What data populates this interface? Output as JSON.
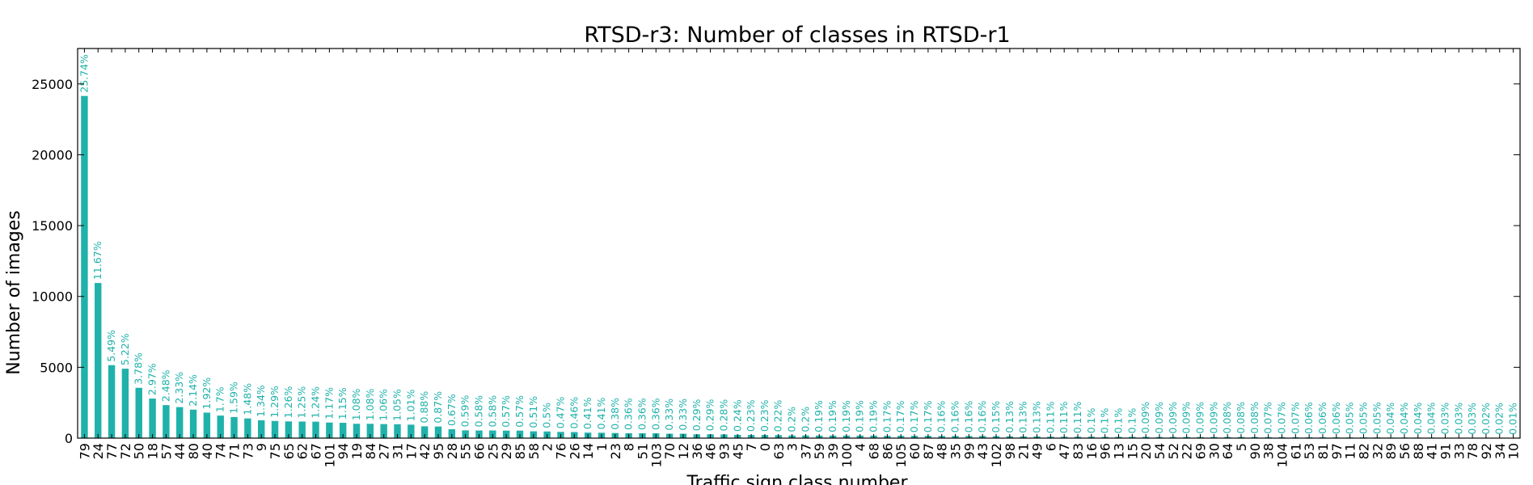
{
  "chart_data": {
    "type": "bar",
    "title": "RTSD-r3: Number of classes in RTSD-r1",
    "xlabel": "Traffic sign class number",
    "ylabel": "Number of images",
    "ylim": [
      0,
      27500
    ],
    "yticks": [
      0,
      5000,
      10000,
      15000,
      20000,
      25000
    ],
    "grid": false,
    "bar_color": "#20b2aa",
    "label_color": "#20b2aa",
    "categories": [
      "79",
      "24",
      "77",
      "72",
      "50",
      "18",
      "57",
      "44",
      "80",
      "40",
      "74",
      "71",
      "73",
      "9",
      "75",
      "65",
      "62",
      "67",
      "101",
      "94",
      "19",
      "84",
      "27",
      "31",
      "17",
      "42",
      "95",
      "28",
      "55",
      "66",
      "25",
      "29",
      "85",
      "58",
      "2",
      "76",
      "26",
      "14",
      "1",
      "23",
      "8",
      "51",
      "103",
      "70",
      "12",
      "36",
      "46",
      "93",
      "45",
      "7",
      "0",
      "63",
      "3",
      "37",
      "59",
      "39",
      "100",
      "4",
      "68",
      "86",
      "105",
      "60",
      "87",
      "48",
      "35",
      "99",
      "43",
      "102",
      "98",
      "21",
      "49",
      "6",
      "47",
      "83",
      "16",
      "96",
      "13",
      "15",
      "20",
      "54",
      "52",
      "22",
      "69",
      "30",
      "64",
      "5",
      "90",
      "38",
      "104",
      "61",
      "53",
      "81",
      "97",
      "11",
      "82",
      "32",
      "89",
      "56",
      "88",
      "41",
      "91",
      "33",
      "78",
      "92",
      "34",
      "10"
    ],
    "values": [
      24150,
      10950,
      5150,
      4900,
      3550,
      2790,
      2330,
      2190,
      2010,
      1800,
      1590,
      1490,
      1390,
      1260,
      1210,
      1180,
      1170,
      1160,
      1100,
      1080,
      1010,
      1010,
      990,
      980,
      950,
      830,
      820,
      630,
      550,
      540,
      540,
      530,
      530,
      480,
      470,
      440,
      430,
      390,
      380,
      360,
      340,
      340,
      340,
      310,
      310,
      270,
      270,
      260,
      230,
      220,
      220,
      210,
      190,
      190,
      180,
      180,
      180,
      180,
      180,
      160,
      160,
      160,
      160,
      150,
      150,
      150,
      150,
      140,
      130,
      120,
      120,
      100,
      100,
      100,
      100,
      90,
      90,
      90,
      90,
      80,
      80,
      80,
      80,
      80,
      80,
      80,
      80,
      70,
      70,
      60,
      60,
      60,
      50,
      50,
      50,
      50,
      40,
      40,
      40,
      40,
      30,
      30,
      20,
      20,
      20,
      10
    ],
    "percent_labels": [
      "25.74%",
      "11.67%",
      "5.49%",
      "5.22%",
      "3.78%",
      "2.97%",
      "2.48%",
      "2.33%",
      "2.14%",
      "1.92%",
      "1.7%",
      "1.59%",
      "1.48%",
      "1.34%",
      "1.29%",
      "1.26%",
      "1.25%",
      "1.24%",
      "1.17%",
      "1.15%",
      "1.08%",
      "1.08%",
      "1.06%",
      "1.05%",
      "1.01%",
      "0.88%",
      "0.87%",
      "0.67%",
      "0.59%",
      "0.58%",
      "0.58%",
      "0.57%",
      "0.57%",
      "0.51%",
      "0.5%",
      "0.47%",
      "0.46%",
      "0.41%",
      "0.41%",
      "0.38%",
      "0.36%",
      "0.36%",
      "0.36%",
      "0.33%",
      "0.33%",
      "0.29%",
      "0.29%",
      "0.28%",
      "0.24%",
      "0.23%",
      "0.23%",
      "0.22%",
      "0.2%",
      "0.2%",
      "0.19%",
      "0.19%",
      "0.19%",
      "0.19%",
      "0.19%",
      "0.17%",
      "0.17%",
      "0.17%",
      "0.17%",
      "0.16%",
      "0.16%",
      "0.16%",
      "0.16%",
      "0.15%",
      "0.13%",
      "0.13%",
      "0.13%",
      "0.11%",
      "0.11%",
      "0.11%",
      "0.1%",
      "0.1%",
      "0.1%",
      "0.1%",
      "0.09%",
      "0.09%",
      "0.09%",
      "0.09%",
      "0.09%",
      "0.09%",
      "0.08%",
      "0.08%",
      "0.08%",
      "0.07%",
      "0.07%",
      "0.07%",
      "0.06%",
      "0.06%",
      "0.06%",
      "0.05%",
      "0.05%",
      "0.05%",
      "0.04%",
      "0.04%",
      "0.04%",
      "0.04%",
      "0.03%",
      "0.03%",
      "0.03%",
      "0.02%",
      "0.02%",
      "0.01%"
    ]
  }
}
